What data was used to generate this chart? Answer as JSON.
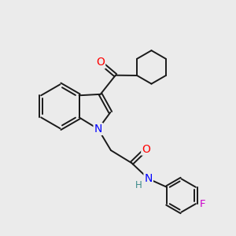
{
  "background_color": "#ebebeb",
  "bond_color": "#1a1a1a",
  "atom_colors": {
    "O": "#ff0000",
    "N": "#0000ff",
    "F": "#cc00cc",
    "H": "#3a8a8a",
    "C": "#1a1a1a"
  },
  "figsize": [
    3.0,
    3.0
  ],
  "dpi": 100,
  "lw": 1.4,
  "fontsize": 9
}
